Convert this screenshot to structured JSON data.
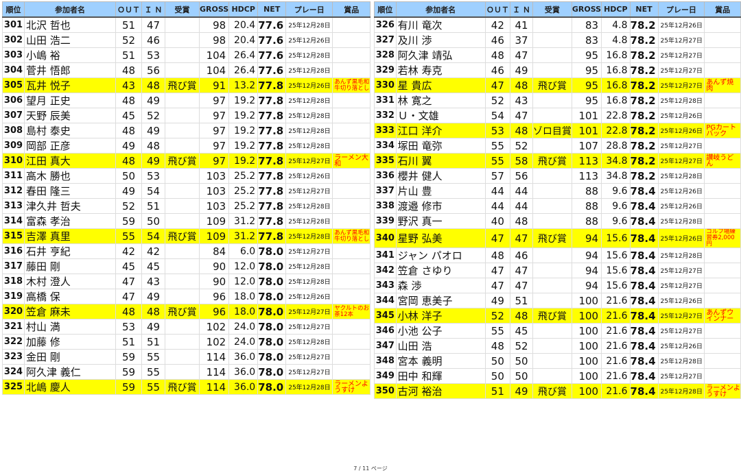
{
  "headers": [
    "順位",
    "参加者名",
    "ＯＵＴ",
    "Ｉ Ｎ",
    "受賞",
    "GROSS",
    "HDCP",
    "NET",
    "プレー日",
    "賞品"
  ],
  "highlight_color": "#ffff00",
  "header_color": "#9fd0ff",
  "prize_color": "#ff0000",
  "left_rows": [
    [
      "301",
      "北沢 哲也",
      "51",
      "47",
      "",
      "98",
      "20.4",
      "77.6",
      "25年12月28日",
      ""
    ],
    [
      "302",
      "山田 浩二",
      "52",
      "46",
      "",
      "98",
      "20.4",
      "77.6",
      "25年12月26日",
      ""
    ],
    [
      "303",
      "小嶋 裕",
      "51",
      "53",
      "",
      "104",
      "26.4",
      "77.6",
      "25年12月28日",
      ""
    ],
    [
      "304",
      "菅井 悟郎",
      "48",
      "56",
      "",
      "104",
      "26.4",
      "77.6",
      "25年12月28日",
      ""
    ],
    [
      "305",
      "瓦井 悦子",
      "43",
      "48",
      "飛び賞",
      "91",
      "13.2",
      "77.8",
      "25年12月26日",
      "あんず黒毛和牛切り落とし"
    ],
    [
      "306",
      "望月 正史",
      "48",
      "49",
      "",
      "97",
      "19.2",
      "77.8",
      "25年12月28日",
      ""
    ],
    [
      "307",
      "天野 辰美",
      "45",
      "52",
      "",
      "97",
      "19.2",
      "77.8",
      "25年12月28日",
      ""
    ],
    [
      "308",
      "島村 泰史",
      "48",
      "49",
      "",
      "97",
      "19.2",
      "77.8",
      "25年12月28日",
      ""
    ],
    [
      "309",
      "岡部 正彦",
      "49",
      "48",
      "",
      "97",
      "19.2",
      "77.8",
      "25年12月28日",
      ""
    ],
    [
      "310",
      "江田 真大",
      "48",
      "49",
      "飛び賞",
      "97",
      "19.2",
      "77.8",
      "25年12月27日",
      "ラーメン大和"
    ],
    [
      "311",
      "高木 勝也",
      "50",
      "53",
      "",
      "103",
      "25.2",
      "77.8",
      "25年12月26日",
      ""
    ],
    [
      "312",
      "春田 隆三",
      "49",
      "54",
      "",
      "103",
      "25.2",
      "77.8",
      "25年12月27日",
      ""
    ],
    [
      "313",
      "津久井 哲夫",
      "52",
      "51",
      "",
      "103",
      "25.2",
      "77.8",
      "25年12月28日",
      ""
    ],
    [
      "314",
      "富森 孝治",
      "59",
      "50",
      "",
      "109",
      "31.2",
      "77.8",
      "25年12月28日",
      ""
    ],
    [
      "315",
      "吉澤 真里",
      "55",
      "54",
      "飛び賞",
      "109",
      "31.2",
      "77.8",
      "25年12月28日",
      "あんず黒毛和牛切り落とし"
    ],
    [
      "316",
      "石井 亨紀",
      "42",
      "42",
      "",
      "84",
      "6.0",
      "78.0",
      "25年12月27日",
      ""
    ],
    [
      "317",
      "藤田 剛",
      "45",
      "45",
      "",
      "90",
      "12.0",
      "78.0",
      "25年12月28日",
      ""
    ],
    [
      "318",
      "木村 澄人",
      "47",
      "43",
      "",
      "90",
      "12.0",
      "78.0",
      "25年12月28日",
      ""
    ],
    [
      "319",
      "高橋 保",
      "47",
      "49",
      "",
      "96",
      "18.0",
      "78.0",
      "25年12月26日",
      ""
    ],
    [
      "320",
      "笠倉 麻未",
      "48",
      "48",
      "飛び賞",
      "96",
      "18.0",
      "78.0",
      "25年12月27日",
      "ヤクルトのお茶12本"
    ],
    [
      "321",
      "村山 満",
      "53",
      "49",
      "",
      "102",
      "24.0",
      "78.0",
      "25年12月27日",
      ""
    ],
    [
      "322",
      "加藤 修",
      "51",
      "51",
      "",
      "102",
      "24.0",
      "78.0",
      "25年12月28日",
      ""
    ],
    [
      "323",
      "金田 剛",
      "59",
      "55",
      "",
      "114",
      "36.0",
      "78.0",
      "25年12月27日",
      ""
    ],
    [
      "324",
      "阿久津 義仁",
      "59",
      "55",
      "",
      "114",
      "36.0",
      "78.0",
      "25年12月27日",
      ""
    ],
    [
      "325",
      "北嶋 慶人",
      "59",
      "55",
      "飛び賞",
      "114",
      "36.0",
      "78.0",
      "25年12月28日",
      "ラーメンようすけ"
    ]
  ],
  "right_rows": [
    [
      "326",
      "有川 竜次",
      "42",
      "41",
      "",
      "83",
      "4.8",
      "78.2",
      "25年12月26日",
      ""
    ],
    [
      "327",
      "及川 渉",
      "46",
      "37",
      "",
      "83",
      "4.8",
      "78.2",
      "25年12月27日",
      ""
    ],
    [
      "328",
      "阿久津 靖弘",
      "48",
      "47",
      "",
      "95",
      "16.8",
      "78.2",
      "25年12月27日",
      ""
    ],
    [
      "329",
      "若林 寿克",
      "46",
      "49",
      "",
      "95",
      "16.8",
      "78.2",
      "25年12月27日",
      ""
    ],
    [
      "330",
      "星 貴広",
      "47",
      "48",
      "飛び賞",
      "95",
      "16.8",
      "78.2",
      "25年12月27日",
      "あんず焼肉"
    ],
    [
      "331",
      "林 寛之",
      "52",
      "43",
      "",
      "95",
      "16.8",
      "78.2",
      "25年12月28日",
      ""
    ],
    [
      "332",
      "Ｕ・文雄",
      "54",
      "47",
      "",
      "101",
      "22.8",
      "78.2",
      "25年12月26日",
      ""
    ],
    [
      "333",
      "江口 洋介",
      "53",
      "48",
      "ゾロ目賞",
      "101",
      "22.8",
      "78.2",
      "25年12月26日",
      "PGカートバック"
    ],
    [
      "334",
      "塚田 竜弥",
      "55",
      "52",
      "",
      "107",
      "28.8",
      "78.2",
      "25年12月27日",
      ""
    ],
    [
      "335",
      "石川 翼",
      "55",
      "58",
      "飛び賞",
      "113",
      "34.8",
      "78.2",
      "25年12月27日",
      "讃岐うどん"
    ],
    [
      "336",
      "櫻井 健人",
      "57",
      "56",
      "",
      "113",
      "34.8",
      "78.2",
      "25年12月28日",
      ""
    ],
    [
      "337",
      "片山 豊",
      "44",
      "44",
      "",
      "88",
      "9.6",
      "78.4",
      "25年12月26日",
      ""
    ],
    [
      "338",
      "渡邉 修市",
      "44",
      "44",
      "",
      "88",
      "9.6",
      "78.4",
      "25年12月26日",
      ""
    ],
    [
      "339",
      "野沢 真一",
      "40",
      "48",
      "",
      "88",
      "9.6",
      "78.4",
      "25年12月28日",
      ""
    ],
    [
      "340",
      "星野 弘美",
      "47",
      "47",
      "飛び賞",
      "94",
      "15.6",
      "78.4",
      "25年12月26日",
      "ゴルフ場練習券2,000円"
    ],
    [
      "341",
      "ジャン パオロ",
      "48",
      "46",
      "",
      "94",
      "15.6",
      "78.4",
      "25年12月28日",
      ""
    ],
    [
      "342",
      "笠倉 さゆり",
      "47",
      "47",
      "",
      "94",
      "15.6",
      "78.4",
      "25年12月27日",
      ""
    ],
    [
      "343",
      "森 渉",
      "47",
      "47",
      "",
      "94",
      "15.6",
      "78.4",
      "25年12月27日",
      ""
    ],
    [
      "344",
      "宮岡 恵美子",
      "49",
      "51",
      "",
      "100",
      "21.6",
      "78.4",
      "25年12月26日",
      ""
    ],
    [
      "345",
      "小林 洋子",
      "52",
      "48",
      "飛び賞",
      "100",
      "21.6",
      "78.4",
      "25年12月27日",
      "あんずウインナー"
    ],
    [
      "346",
      "小池 公子",
      "55",
      "45",
      "",
      "100",
      "21.6",
      "78.4",
      "25年12月27日",
      ""
    ],
    [
      "347",
      "山田 浩",
      "48",
      "52",
      "",
      "100",
      "21.6",
      "78.4",
      "25年12月26日",
      ""
    ],
    [
      "348",
      "宮本 義明",
      "50",
      "50",
      "",
      "100",
      "21.6",
      "78.4",
      "25年12月28日",
      ""
    ],
    [
      "349",
      "田中 和輝",
      "50",
      "50",
      "",
      "100",
      "21.6",
      "78.4",
      "25年12月27日",
      ""
    ],
    [
      "350",
      "古河 裕治",
      "51",
      "49",
      "飛び賞",
      "100",
      "21.6",
      "78.4",
      "25年12月28日",
      "ラーメンようすけ"
    ]
  ],
  "footer": {
    "page": "7 / 11 ページ"
  }
}
